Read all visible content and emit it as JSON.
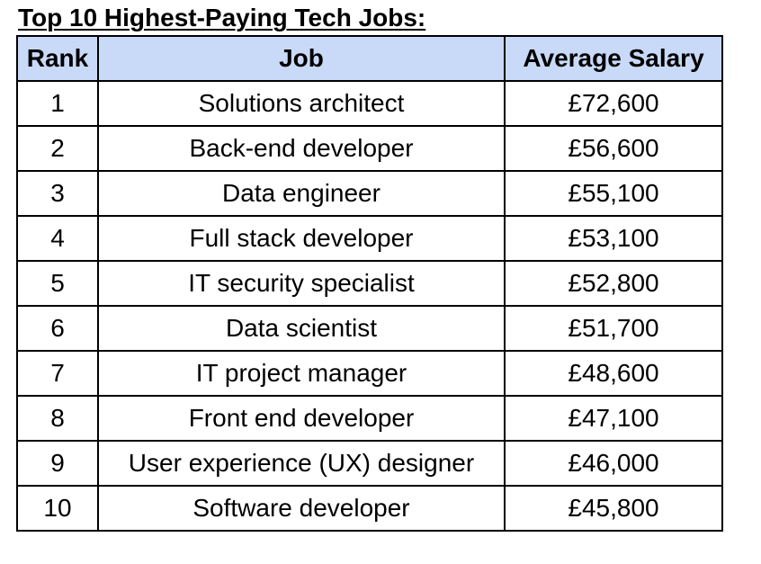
{
  "title": "Top 10 Highest-Paying Tech Jobs:",
  "colors": {
    "header_bg": "#c9daf8",
    "border": "#000000"
  },
  "table": {
    "headers": [
      "Rank",
      "Job",
      "Average Salary"
    ],
    "rows": [
      {
        "rank": "1",
        "job": "Solutions architect",
        "salary": "£72,600"
      },
      {
        "rank": "2",
        "job": "Back-end developer",
        "salary": "£56,600"
      },
      {
        "rank": "3",
        "job": "Data engineer",
        "salary": "£55,100"
      },
      {
        "rank": "4",
        "job": "Full stack developer",
        "salary": "£53,100"
      },
      {
        "rank": "5",
        "job": "IT security specialist",
        "salary": "£52,800"
      },
      {
        "rank": "6",
        "job": "Data scientist",
        "salary": "£51,700"
      },
      {
        "rank": "7",
        "job": "IT project manager",
        "salary": "£48,600"
      },
      {
        "rank": "8",
        "job": "Front end developer",
        "salary": "£47,100"
      },
      {
        "rank": "9",
        "job": "User experience (UX) designer",
        "salary": "£46,000"
      },
      {
        "rank": "10",
        "job": "Software developer",
        "salary": "£45,800"
      }
    ]
  }
}
